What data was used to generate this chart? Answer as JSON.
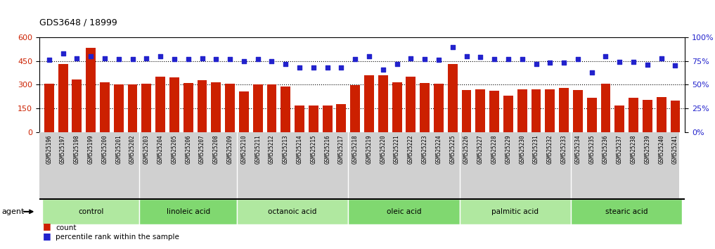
{
  "title": "GDS3648 / 18999",
  "samples": [
    "GSM525196",
    "GSM525197",
    "GSM525198",
    "GSM525199",
    "GSM525200",
    "GSM525201",
    "GSM525202",
    "GSM525203",
    "GSM525204",
    "GSM525205",
    "GSM525206",
    "GSM525207",
    "GSM525208",
    "GSM525209",
    "GSM525210",
    "GSM525211",
    "GSM525212",
    "GSM525213",
    "GSM525214",
    "GSM525215",
    "GSM525216",
    "GSM525217",
    "GSM525218",
    "GSM525219",
    "GSM525220",
    "GSM525221",
    "GSM525222",
    "GSM525223",
    "GSM525224",
    "GSM525225",
    "GSM525226",
    "GSM525227",
    "GSM525228",
    "GSM525229",
    "GSM525230",
    "GSM525231",
    "GSM525232",
    "GSM525233",
    "GSM525234",
    "GSM525235",
    "GSM525236",
    "GSM525237",
    "GSM525238",
    "GSM525239",
    "GSM525240",
    "GSM525241"
  ],
  "counts": [
    308,
    430,
    335,
    535,
    315,
    302,
    300,
    308,
    350,
    345,
    310,
    330,
    315,
    305,
    258,
    303,
    300,
    290,
    170,
    170,
    170,
    175,
    295,
    360,
    360,
    315,
    350,
    310,
    305,
    430,
    265,
    270,
    260,
    230,
    270,
    270,
    270,
    278,
    268,
    215,
    305,
    170,
    218,
    205,
    220,
    200
  ],
  "percentile_ranks": [
    76,
    83,
    78,
    80,
    78,
    77,
    77,
    78,
    80,
    77,
    77,
    78,
    77,
    77,
    75,
    77,
    75,
    72,
    68,
    68,
    68,
    68,
    77,
    80,
    66,
    72,
    78,
    77,
    76,
    90,
    80,
    79,
    77,
    77,
    77,
    72,
    73,
    73,
    77,
    63,
    80,
    74,
    74,
    71,
    78,
    70
  ],
  "groups": [
    {
      "name": "control",
      "start": 0,
      "end": 6,
      "color1": "#c8f0b8",
      "color2": "#a8e898"
    },
    {
      "name": "linoleic acid",
      "start": 7,
      "end": 13,
      "color1": "#a0e890",
      "color2": "#88d878"
    },
    {
      "name": "octanoic acid",
      "start": 14,
      "end": 21,
      "color1": "#c8f0b8",
      "color2": "#a8e898"
    },
    {
      "name": "oleic acid",
      "start": 22,
      "end": 29,
      "color1": "#a0e890",
      "color2": "#88d878"
    },
    {
      "name": "palmitic acid",
      "start": 30,
      "end": 37,
      "color1": "#c8f0b8",
      "color2": "#a8e898"
    },
    {
      "name": "stearic acid",
      "start": 38,
      "end": 45,
      "color1": "#a0e890",
      "color2": "#88d878"
    }
  ],
  "group_colors_light": [
    "#d0f0c0",
    "#a8e898"
  ],
  "bar_color": "#cc2000",
  "dot_color": "#2222cc",
  "left_ylim": [
    0,
    600
  ],
  "left_yticks": [
    0,
    150,
    300,
    450,
    600
  ],
  "right_ylim": [
    0,
    100
  ],
  "right_yticks": [
    0,
    25,
    50,
    75,
    100
  ],
  "right_yticklabels": [
    "0%",
    "25%",
    "50%",
    "75%",
    "100%"
  ],
  "title_fontsize": 9,
  "agent_label": "agent",
  "legend_count_label": "count",
  "legend_pct_label": "percentile rank within the sample",
  "tick_bg_color": "#d0d0d0",
  "grid_dotted_color": "#000000",
  "hgrid_values": [
    150,
    300,
    450
  ]
}
